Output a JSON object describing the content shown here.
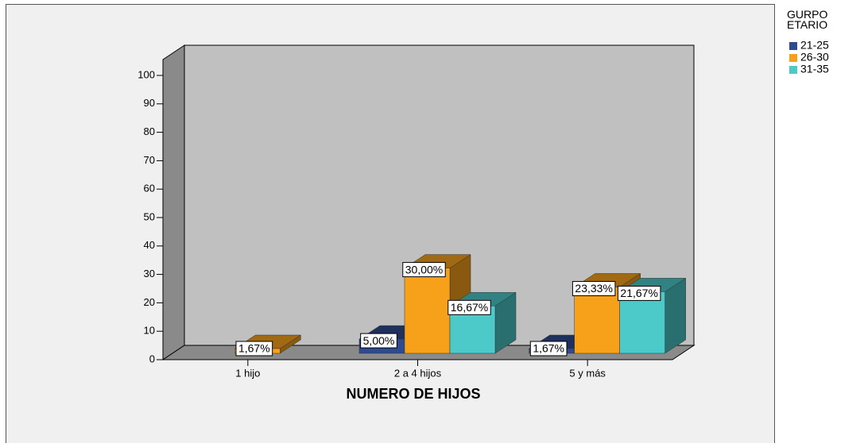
{
  "chart_data": {
    "type": "bar3d",
    "categories": [
      "1 hijo",
      "2 a 4 hijos",
      "5 y más"
    ],
    "series": [
      {
        "name": "21-25",
        "color": "#2e4b90",
        "values": [
          null,
          5.0,
          1.67
        ],
        "value_labels": [
          null,
          "5,00%",
          "1,67%"
        ]
      },
      {
        "name": "26-30",
        "color": "#f7a11a",
        "values": [
          1.67,
          30.0,
          23.33
        ],
        "value_labels": [
          "1,67%",
          "30,00%",
          "23,33%"
        ]
      },
      {
        "name": "31-35",
        "color": "#4cc9c9",
        "values": [
          null,
          16.67,
          21.67
        ],
        "value_labels": [
          null,
          "16,67%",
          "21,67%"
        ]
      }
    ],
    "xlabel": "NUMERO DE HIJOS",
    "legend_title": "GURPO ETARIO",
    "ylim": [
      0,
      100
    ],
    "yticks": [
      0,
      10,
      20,
      30,
      40,
      50,
      60,
      70,
      80,
      90,
      100
    ]
  }
}
